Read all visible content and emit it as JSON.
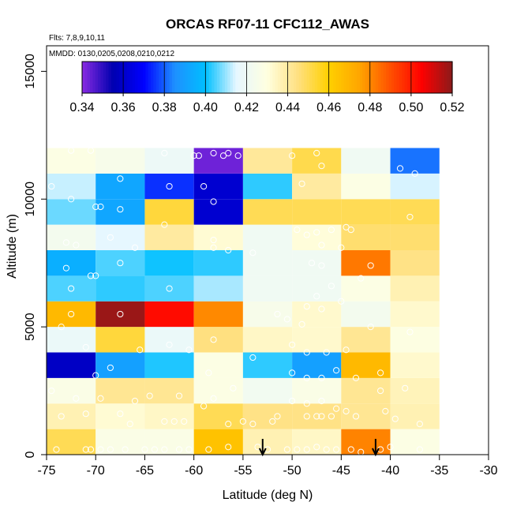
{
  "chart_data": {
    "type": "heatmap",
    "title": "ORCAS RF07-11 CFC112_AWAS",
    "flights_label": "Flts: 7,8,9,10,11",
    "dates_label": "MMDD: 0130,0205,0208,0210,0212",
    "xlabel": "Latitude (deg N)",
    "ylabel": "Altitude (m)",
    "xlim": [
      -75,
      -30
    ],
    "ylim": [
      0,
      16000
    ],
    "x_ticks": [
      -75,
      -70,
      -65,
      -60,
      -55,
      -50,
      -45,
      -40,
      -35,
      -30
    ],
    "y_ticks": [
      0,
      5000,
      10000,
      15000
    ],
    "x_tick_labels": [
      "-75",
      "-70",
      "-65",
      "-60",
      "-55",
      "-50",
      "-45",
      "-40",
      "-35",
      "-30"
    ],
    "y_tick_labels": [
      "0",
      "5000",
      "10000",
      "15000"
    ],
    "colorbar": {
      "min": 0.34,
      "max": 0.52,
      "tick_values": [
        0.34,
        0.36,
        0.38,
        0.4,
        0.42,
        0.44,
        0.46,
        0.48,
        0.5,
        0.52
      ],
      "tick_labels": [
        "0.34",
        "0.36",
        "0.38",
        "0.40",
        "0.42",
        "0.44",
        "0.46",
        "0.48",
        "0.50",
        "0.52"
      ],
      "palette": [
        "#8A2BE2",
        "#0000B0",
        "#0000FF",
        "#1E90FF",
        "#00BFFF",
        "#E6F7FF",
        "#FFFFE0",
        "#FFE080",
        "#FFD000",
        "#FFA500",
        "#FF5000",
        "#FF0000",
        "#8B1A1A"
      ]
    },
    "lat_bins": [
      -75,
      -70,
      -65,
      -60,
      -55,
      -50,
      -45,
      -40,
      -35
    ],
    "alt_bin_size": 1000,
    "grid": [
      {
        "alt": 0,
        "values": [
          0.45,
          0.427,
          0.427,
          0.465,
          0.437,
          0.434,
          0.481,
          0.428
        ]
      },
      {
        "alt": 1000,
        "values": [
          0.437,
          0.432,
          0.434,
          0.45,
          0.444,
          0.444,
          0.442,
          0.437
        ]
      },
      {
        "alt": 2000,
        "values": [
          0.427,
          0.442,
          0.442,
          0.428,
          0.422,
          0.427,
          0.442,
          0.436
        ]
      },
      {
        "alt": 3000,
        "values": [
          0.359,
          0.39,
          0.402,
          0.428,
          0.403,
          0.39,
          0.468,
          0.433
        ]
      },
      {
        "alt": 4000,
        "values": [
          0.418,
          0.453,
          0.418,
          0.445,
          0.434,
          0.433,
          0.442,
          0.429
        ]
      },
      {
        "alt": 5000,
        "values": [
          0.468,
          0.518,
          0.503,
          0.48,
          0.425,
          0.433,
          0.423,
          0.433
        ]
      },
      {
        "alt": 6000,
        "values": [
          0.405,
          0.403,
          0.405,
          0.411,
          0.421,
          0.421,
          0.428,
          0.437
        ]
      },
      {
        "alt": 7000,
        "values": [
          0.395,
          0.405,
          0.401,
          0.403,
          0.421,
          0.421,
          0.483,
          0.444
        ]
      },
      {
        "alt": 8000,
        "values": [
          0.423,
          0.415,
          0.44,
          0.432,
          0.421,
          0.431,
          0.447,
          0.447
        ]
      },
      {
        "alt": 9000,
        "values": [
          0.407,
          0.392,
          0.453,
          0.361,
          0.45,
          0.45,
          0.45,
          0.45
        ]
      },
      {
        "alt": 10000,
        "values": [
          0.413,
          0.392,
          0.375,
          0.361,
          0.403,
          0.44,
          0.428,
          0.414
        ]
      },
      {
        "alt": 11000,
        "values": [
          0.428,
          0.425,
          0.419,
          0.343,
          0.441,
          0.451,
          0.421,
          0.382
        ]
      }
    ],
    "arrows_at_latitude": [
      -53,
      -41.5
    ],
    "samples": [
      [
        -74.5,
        10500
      ],
      [
        -72.5,
        11900
      ],
      [
        -70.5,
        11900
      ],
      [
        -63,
        11800
      ],
      [
        -62.5,
        10500
      ],
      [
        -60,
        11700
      ],
      [
        -59.5,
        11700
      ],
      [
        -58,
        11800
      ],
      [
        -57,
        11700
      ],
      [
        -56.5,
        11800
      ],
      [
        -55.5,
        11700
      ],
      [
        -50,
        11700
      ],
      [
        -47.5,
        11800
      ],
      [
        -47,
        11300
      ],
      [
        -49,
        10600
      ],
      [
        -39,
        11200
      ],
      [
        -37.5,
        11000
      ],
      [
        -72.5,
        10000
      ],
      [
        -70,
        9700
      ],
      [
        -69.5,
        9700
      ],
      [
        -67.5,
        10800
      ],
      [
        -67.5,
        9600
      ],
      [
        -59,
        10500
      ],
      [
        -58,
        9900
      ],
      [
        -68.5,
        8500
      ],
      [
        -66,
        8100
      ],
      [
        -73,
        8300
      ],
      [
        -72,
        8200
      ],
      [
        -63,
        9000
      ],
      [
        -58,
        8400
      ],
      [
        -58,
        8100
      ],
      [
        -56.5,
        8000
      ],
      [
        -54,
        7900
      ],
      [
        -49.5,
        8800
      ],
      [
        -48.5,
        8600
      ],
      [
        -47.5,
        8700
      ],
      [
        -47,
        8200
      ],
      [
        -46,
        8800
      ],
      [
        -44.5,
        8900
      ],
      [
        -44,
        8800
      ],
      [
        -45,
        8100
      ],
      [
        -38,
        9300
      ],
      [
        -73,
        7300
      ],
      [
        -72.5,
        6500
      ],
      [
        -70.5,
        7000
      ],
      [
        -70,
        7000
      ],
      [
        -67.5,
        7500
      ],
      [
        -62.5,
        6500
      ],
      [
        -48,
        7500
      ],
      [
        -47,
        7400
      ],
      [
        -47.5,
        6200
      ],
      [
        -45,
        6000
      ],
      [
        -43,
        6900
      ],
      [
        -42,
        7400
      ],
      [
        -48.5,
        5800
      ],
      [
        -47,
        5700
      ],
      [
        -46,
        6600
      ],
      [
        -73.5,
        5000
      ],
      [
        -72.5,
        5500
      ],
      [
        -67.5,
        5500
      ],
      [
        -51.5,
        5500
      ],
      [
        -50.5,
        5300
      ],
      [
        -49,
        5100
      ],
      [
        -42,
        5000
      ],
      [
        -38,
        4800
      ],
      [
        -71,
        4200
      ],
      [
        -65.5,
        4100
      ],
      [
        -62.5,
        4300
      ],
      [
        -60.5,
        4100
      ],
      [
        -58,
        4500
      ],
      [
        -54,
        3800
      ],
      [
        -50,
        4300
      ],
      [
        -48.5,
        4000
      ],
      [
        -46.5,
        4000
      ],
      [
        -44.5,
        4100
      ],
      [
        -70,
        3100
      ],
      [
        -68.5,
        3400
      ],
      [
        -56,
        2600
      ],
      [
        -50,
        3200
      ],
      [
        -48.5,
        3000
      ],
      [
        -47,
        3000
      ],
      [
        -45.5,
        3300
      ],
      [
        -43.5,
        3000
      ],
      [
        -41,
        3200
      ],
      [
        -58.5,
        3200
      ],
      [
        -74.5,
        2500
      ],
      [
        -72,
        2200
      ],
      [
        -69.5,
        2200
      ],
      [
        -66,
        2100
      ],
      [
        -64.5,
        2300
      ],
      [
        -61.5,
        2300
      ],
      [
        -58,
        2200
      ],
      [
        -59,
        1900
      ],
      [
        -50,
        2100
      ],
      [
        -48.5,
        2000
      ],
      [
        -47,
        2100
      ],
      [
        -45.5,
        1800
      ],
      [
        -44.5,
        1700
      ],
      [
        -41,
        2500
      ],
      [
        -38.5,
        2600
      ],
      [
        -73.5,
        1500
      ],
      [
        -71,
        1600
      ],
      [
        -67.5,
        1600
      ],
      [
        -66.5,
        1200
      ],
      [
        -63,
        1300
      ],
      [
        -62,
        1300
      ],
      [
        -61,
        1300
      ],
      [
        -56.5,
        1200
      ],
      [
        -55,
        1300
      ],
      [
        -54,
        1200
      ],
      [
        -52,
        1300
      ],
      [
        -51.5,
        1500
      ],
      [
        -48.5,
        1500
      ],
      [
        -47.5,
        1500
      ],
      [
        -47,
        1500
      ],
      [
        -46,
        1500
      ],
      [
        -43.5,
        1500
      ],
      [
        -40.5,
        1700
      ],
      [
        -39.5,
        1400
      ],
      [
        -37,
        1200
      ],
      [
        -74,
        200
      ],
      [
        -71,
        200
      ],
      [
        -70.5,
        200
      ],
      [
        -69.5,
        200
      ],
      [
        -68.5,
        200
      ],
      [
        -67,
        200
      ],
      [
        -65,
        200
      ],
      [
        -64,
        200
      ],
      [
        -63,
        200
      ],
      [
        -61.5,
        200
      ],
      [
        -60.5,
        200
      ],
      [
        -58.5,
        200
      ],
      [
        -56.5,
        300
      ],
      [
        -53.5,
        300
      ],
      [
        -52.5,
        200
      ],
      [
        -50.5,
        200
      ],
      [
        -49.5,
        200
      ],
      [
        -48.5,
        200
      ],
      [
        -47.5,
        300
      ],
      [
        -46.5,
        200
      ],
      [
        -45.5,
        200
      ],
      [
        -44,
        200
      ],
      [
        -43,
        100
      ],
      [
        -41,
        200
      ],
      [
        -40,
        300
      ],
      [
        -37,
        200
      ]
    ]
  }
}
